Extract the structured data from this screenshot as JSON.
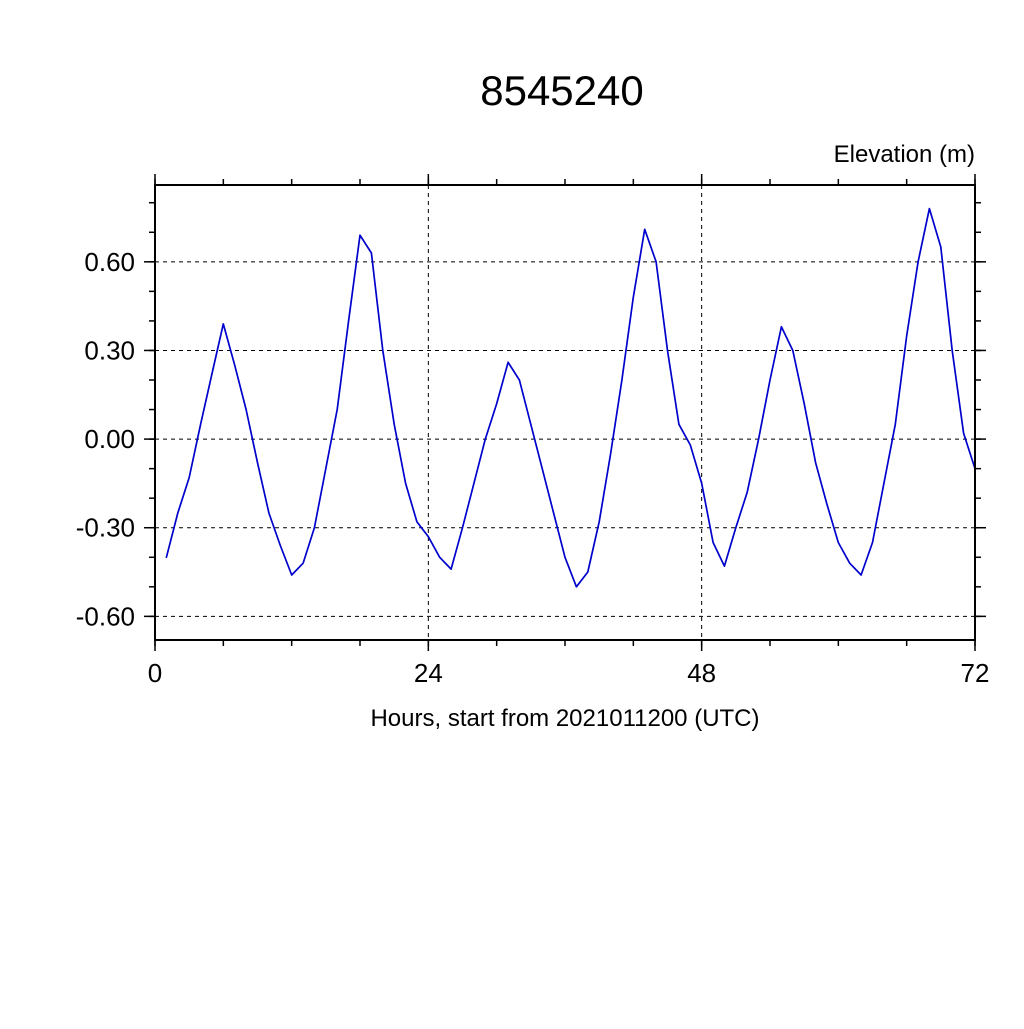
{
  "chart_data": {
    "type": "line",
    "title": "8545240",
    "ylabel": "Elevation (m)",
    "xlabel": "Hours, start from 2021011200 (UTC)",
    "xlim": [
      0,
      72
    ],
    "ylim": [
      -0.68,
      0.86
    ],
    "xticks": [
      0,
      24,
      48,
      72
    ],
    "xtick_labels": [
      "0",
      "24",
      "48",
      "72"
    ],
    "yticks": [
      -0.6,
      -0.3,
      0.0,
      0.3,
      0.6
    ],
    "ytick_labels": [
      "-0.60",
      "-0.30",
      "0.00",
      "0.30",
      "0.60"
    ],
    "x_minor_step": 6,
    "y_minor_step": 0.1,
    "grid_x": [
      24,
      48
    ],
    "grid_y": [
      -0.6,
      -0.3,
      0.0,
      0.3,
      0.6
    ],
    "grid_on": true,
    "legend": "none",
    "line_color": "#0000cc",
    "series": [
      {
        "name": "elevation",
        "x": [
          1,
          2,
          3,
          4,
          5,
          6,
          7,
          8,
          9,
          10,
          11,
          12,
          13,
          14,
          15,
          16,
          17,
          18,
          19,
          20,
          21,
          22,
          23,
          24,
          25,
          26,
          27,
          28,
          29,
          30,
          31,
          32,
          33,
          34,
          35,
          36,
          37,
          38,
          39,
          40,
          41,
          42,
          43,
          44,
          45,
          46,
          47,
          48,
          49,
          50,
          51,
          52,
          53,
          54,
          55,
          56,
          57,
          58,
          59,
          60,
          61,
          62,
          63,
          64,
          65,
          66,
          67,
          68,
          69,
          70,
          71,
          72
        ],
        "y": [
          -0.4,
          -0.25,
          -0.13,
          0.05,
          0.22,
          0.39,
          0.25,
          0.1,
          -0.08,
          -0.25,
          -0.36,
          -0.46,
          -0.42,
          -0.3,
          -0.1,
          0.1,
          0.4,
          0.69,
          0.63,
          0.3,
          0.05,
          -0.15,
          -0.28,
          -0.33,
          -0.4,
          -0.44,
          -0.3,
          -0.15,
          0.0,
          0.12,
          0.26,
          0.2,
          0.05,
          -0.1,
          -0.25,
          -0.4,
          -0.5,
          -0.45,
          -0.28,
          -0.05,
          0.2,
          0.48,
          0.71,
          0.6,
          0.3,
          0.05,
          -0.02,
          -0.15,
          -0.35,
          -0.43,
          -0.3,
          -0.18,
          0.0,
          0.2,
          0.38,
          0.3,
          0.12,
          -0.08,
          -0.22,
          -0.35,
          -0.42,
          -0.46,
          -0.35,
          -0.15,
          0.05,
          0.35,
          0.6,
          0.78,
          0.65,
          0.3,
          0.02,
          -0.1
        ]
      }
    ]
  }
}
